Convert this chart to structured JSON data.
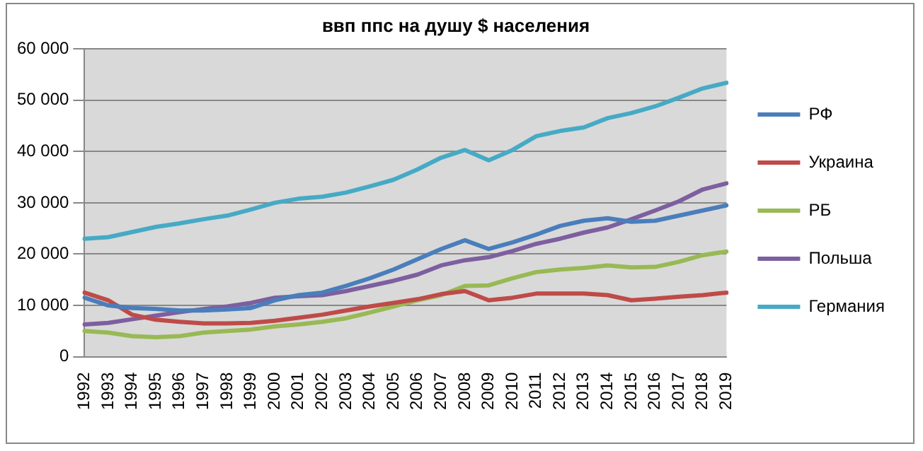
{
  "chart_data": {
    "type": "line",
    "title": "ввп ппс на душу $ населения",
    "categories": [
      "1992",
      "1993",
      "1994",
      "1995",
      "1996",
      "1997",
      "1998",
      "1999",
      "2000",
      "2001",
      "2002",
      "2003",
      "2004",
      "2005",
      "2006",
      "2007",
      "2008",
      "2009",
      "2010",
      "2011",
      "2012",
      "2013",
      "2014",
      "2015",
      "2016",
      "2017",
      "2018",
      "2019"
    ],
    "series": [
      {
        "name": "РФ",
        "color": "#4a7ebb",
        "values": [
          11500,
          10000,
          9500,
          9300,
          9000,
          9000,
          9200,
          9500,
          11000,
          12000,
          12500,
          13800,
          15300,
          17000,
          19000,
          21000,
          22700,
          21000,
          22300,
          23800,
          25500,
          26500,
          27000,
          26300,
          26500,
          27500,
          28500,
          29500
        ]
      },
      {
        "name": "Украина",
        "color": "#be4b48",
        "values": [
          12500,
          11000,
          8200,
          7200,
          6800,
          6500,
          6500,
          6600,
          7000,
          7600,
          8200,
          9000,
          9800,
          10500,
          11200,
          12200,
          12800,
          11000,
          11500,
          12300,
          12300,
          12300,
          12000,
          11000,
          11300,
          11700,
          12000,
          12500
        ]
      },
      {
        "name": "РБ",
        "color": "#98b954",
        "values": [
          5000,
          4700,
          4000,
          3800,
          4000,
          4700,
          5000,
          5300,
          5900,
          6300,
          6800,
          7500,
          8600,
          9800,
          11000,
          12000,
          13800,
          13900,
          15300,
          16500,
          17000,
          17300,
          17800,
          17400,
          17500,
          18500,
          19800,
          20500
        ]
      },
      {
        "name": "Польша",
        "color": "#7d5fa0",
        "values": [
          6300,
          6600,
          7300,
          8000,
          8700,
          9300,
          9800,
          10500,
          11500,
          11800,
          12000,
          12800,
          13800,
          14800,
          16000,
          17800,
          18800,
          19400,
          20600,
          22000,
          23000,
          24200,
          25200,
          26800,
          28500,
          30300,
          32600,
          33800
        ]
      },
      {
        "name": "Германия",
        "color": "#46aac5",
        "values": [
          23000,
          23300,
          24300,
          25300,
          26000,
          26800,
          27500,
          28700,
          30000,
          30800,
          31200,
          32000,
          33200,
          34500,
          36500,
          38800,
          40300,
          38300,
          40300,
          43000,
          44000,
          44700,
          46500,
          47500,
          48800,
          50500,
          52300,
          53400
        ]
      }
    ],
    "ylim": [
      0,
      60000
    ],
    "yticks": [
      0,
      {
        "value": 10000,
        "label": "10 000"
      },
      {
        "value": 20000,
        "label": "20 000"
      },
      {
        "value": 30000,
        "label": "30 000"
      },
      {
        "value": 40000,
        "label": "40 000"
      },
      {
        "value": 50000,
        "label": "50 000"
      },
      {
        "value": 60000,
        "label": "60 000"
      }
    ],
    "grid": "y",
    "legend": "right",
    "marker": "none",
    "line_style": "solid"
  }
}
